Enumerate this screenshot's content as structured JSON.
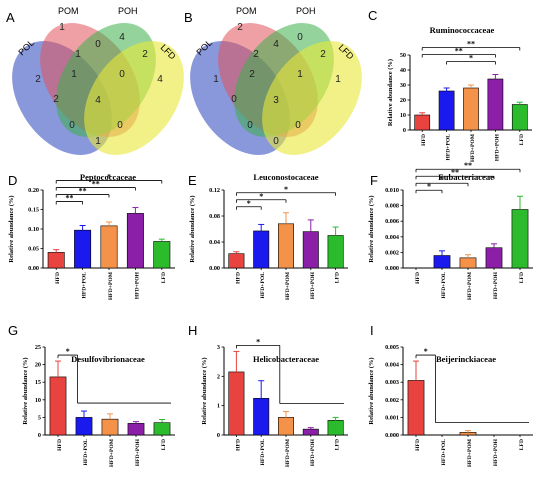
{
  "figure": {
    "panel_letters": [
      "A",
      "B",
      "C",
      "D",
      "E",
      "F",
      "G",
      "H",
      "I"
    ],
    "venn_labels": [
      "POL",
      "POM",
      "POH",
      "LFD"
    ],
    "venn_colors": [
      "#4a5fc8",
      "#e0525a",
      "#3db04a",
      "#e8e838"
    ]
  },
  "venns": [
    {
      "letter": "A",
      "counts": {
        "POL_only": "2",
        "POM_only": "1",
        "POH_only": "4",
        "LFD_only": "4",
        "POL_POM": "1",
        "POM_POH": "0",
        "POH_LFD": "2",
        "POL_LFD": "0",
        "POL_POH": "2",
        "POM_LFD": "0",
        "POL_POM_POH": "1",
        "POM_POH_LFD": "0",
        "POL_POH_LFD": "0",
        "POL_POM_LFD": "0",
        "all": "4",
        "POM_POH_LFD_low": "1"
      }
    },
    {
      "letter": "B",
      "counts": {
        "POL_only": "1",
        "POM_only": "2",
        "POH_only": "0",
        "LFD_only": "1",
        "POL_POM": "2",
        "POM_POH": "4",
        "POH_LFD": "2",
        "POL_LFD": "0",
        "POL_POH": "0",
        "POM_LFD": "0",
        "POL_POM_POH": "2",
        "POM_POH_LFD": "1",
        "POL_POH_LFD": "0",
        "POL_POM_LFD": "0",
        "all": "3",
        "POM_POH_LFD_low": "0"
      }
    }
  ],
  "chart_data": [
    {
      "letter": "C",
      "type": "bar",
      "title": "Ruminococcaceae",
      "ylabel": "Relative abundance (%)",
      "categories": [
        "HFD",
        "HFD+POL",
        "HFD+POM",
        "HFD+POH",
        "LFD"
      ],
      "values": [
        10,
        26,
        28,
        34,
        17
      ],
      "errors": [
        1.5,
        2,
        2,
        3,
        1.5
      ],
      "ylim": [
        0,
        50
      ],
      "yticks": [
        "0",
        "10",
        "20",
        "30",
        "40",
        "50"
      ],
      "colors": [
        "#e8433e",
        "#1a1aee",
        "#f4924a",
        "#8b1fa8",
        "#2cbb2c"
      ],
      "sig": [
        {
          "from": 0,
          "to": 3,
          "label": "**",
          "level": 2
        },
        {
          "from": 0,
          "to": 4,
          "label": "**",
          "level": 3
        },
        {
          "from": 1,
          "to": 3,
          "label": "*",
          "level": 1
        }
      ]
    },
    {
      "letter": "D",
      "type": "bar",
      "title": "Peptococcaceae",
      "ylabel": "Relative abundance (%)",
      "categories": [
        "HFD",
        "HFD+POL",
        "HFD+POM",
        "HFD+POH",
        "LFD"
      ],
      "values": [
        0.04,
        0.097,
        0.108,
        0.14,
        0.068
      ],
      "errors": [
        0.007,
        0.012,
        0.01,
        0.015,
        0.006
      ],
      "ylim": [
        0,
        0.2
      ],
      "yticks": [
        "0.00",
        "0.05",
        "0.10",
        "0.15",
        "0.20"
      ],
      "colors": [
        "#e8433e",
        "#1a1aee",
        "#f4924a",
        "#8b1fa8",
        "#2cbb2c"
      ],
      "sig": [
        {
          "from": 0,
          "to": 1,
          "label": "**",
          "level": 0
        },
        {
          "from": 0,
          "to": 2,
          "label": "**",
          "level": 1
        },
        {
          "from": 0,
          "to": 3,
          "label": "**",
          "level": 2
        },
        {
          "from": 0,
          "to": 4,
          "label": "*",
          "level": 3
        }
      ]
    },
    {
      "letter": "E",
      "type": "bar",
      "title": "Leuconostocaceae",
      "ylabel": "Relative abundance (%)",
      "categories": [
        "HFD",
        "HFD+POL",
        "HFD+POM",
        "HFD+POH",
        "LFD"
      ],
      "values": [
        0.022,
        0.057,
        0.068,
        0.056,
        0.05
      ],
      "errors": [
        0.003,
        0.01,
        0.017,
        0.018,
        0.013
      ],
      "ylim": [
        0,
        0.12
      ],
      "yticks": [
        "0.00",
        "0.04",
        "0.08",
        "0.12"
      ],
      "colors": [
        "#e8433e",
        "#1a1aee",
        "#f4924a",
        "#8b1fa8",
        "#2cbb2c"
      ],
      "sig": [
        {
          "from": 0,
          "to": 1,
          "label": "*",
          "level": 0
        },
        {
          "from": 0,
          "to": 2,
          "label": "*",
          "level": 1
        },
        {
          "from": 0,
          "to": 4,
          "label": "*",
          "level": 2
        }
      ]
    },
    {
      "letter": "F",
      "type": "bar",
      "title": "Eubacteriaceae",
      "ylabel": "Relative abundance (%)",
      "categories": [
        "HFD",
        "HFD+POL",
        "HFD+POM",
        "HFD+POH",
        "LFD"
      ],
      "values": [
        0,
        0.0016,
        0.0013,
        0.0026,
        0.0075
      ],
      "errors": [
        0,
        0.0006,
        0.0004,
        0.0005,
        0.0017
      ],
      "ylim": [
        0,
        0.01
      ],
      "yticks": [
        "0.000",
        "0.002",
        "0.004",
        "0.006",
        "0.008",
        "0.010"
      ],
      "colors": [
        "#e8433e",
        "#1a1aee",
        "#f4924a",
        "#8b1fa8",
        "#2cbb2c"
      ],
      "sig": [
        {
          "from": 0,
          "to": 1,
          "label": "*",
          "level": 0
        },
        {
          "from": 0,
          "to": 2,
          "label": "*",
          "level": 1
        },
        {
          "from": 0,
          "to": 3,
          "label": "**",
          "level": 2
        },
        {
          "from": 0,
          "to": 4,
          "label": "**",
          "level": 3
        }
      ]
    },
    {
      "letter": "G",
      "type": "bar",
      "title": "Desulfovibrionaceae",
      "ylabel": "Relative abundance (%)",
      "categories": [
        "HFD",
        "HFD+POL",
        "HFD+POM",
        "HFD+POH",
        "LFD"
      ],
      "values": [
        16.5,
        5,
        4.5,
        3.3,
        3.5
      ],
      "errors": [
        4.5,
        1.8,
        1.5,
        0.5,
        0.9
      ],
      "ylim": [
        0,
        25
      ],
      "yticks": [
        "0",
        "5",
        "10",
        "15",
        "20",
        "25"
      ],
      "colors": [
        "#e8433e",
        "#1a1aee",
        "#f4924a",
        "#8b1fa8",
        "#2cbb2c"
      ],
      "bracket": {
        "from": 0,
        "to_start": 1,
        "to_end": 4,
        "label": "*"
      }
    },
    {
      "letter": "H",
      "type": "bar",
      "title": "Helicobacteraceae",
      "ylabel": "Relative abundance (%)",
      "categories": [
        "HFD",
        "HFD+POL",
        "HFD+POM",
        "HFD+POH",
        "LFD"
      ],
      "values": [
        2.15,
        1.25,
        0.6,
        0.2,
        0.5
      ],
      "errors": [
        0.7,
        0.6,
        0.2,
        0.05,
        0.1
      ],
      "ylim": [
        0,
        3
      ],
      "yticks": [
        "0",
        "1",
        "2",
        "3"
      ],
      "colors": [
        "#e8433e",
        "#1a1aee",
        "#f4924a",
        "#8b1fa8",
        "#2cbb2c"
      ],
      "bracket": {
        "from": 0,
        "to_start": 2,
        "to_end": 4,
        "label": "*"
      }
    },
    {
      "letter": "I",
      "type": "bar",
      "title": "Beijerinckiaceae",
      "ylabel": "Relative abundance (%)",
      "categories": [
        "HFD",
        "HFD+POL",
        "HFD+POM",
        "HFD+POH",
        "LFD"
      ],
      "values": [
        0.0031,
        0,
        0.00015,
        0,
        0
      ],
      "errors": [
        0.0011,
        0,
        0.0001,
        0,
        0
      ],
      "ylim": [
        0,
        0.005
      ],
      "yticks": [
        "0.000",
        "0.001",
        "0.002",
        "0.003",
        "0.004",
        "0.005"
      ],
      "colors": [
        "#e8433e",
        "#1a1aee",
        "#f4924a",
        "#8b1fa8",
        "#2cbb2c"
      ],
      "bracket": {
        "from": 0,
        "to_start": 1,
        "to_end": 4,
        "label": "*"
      }
    }
  ]
}
